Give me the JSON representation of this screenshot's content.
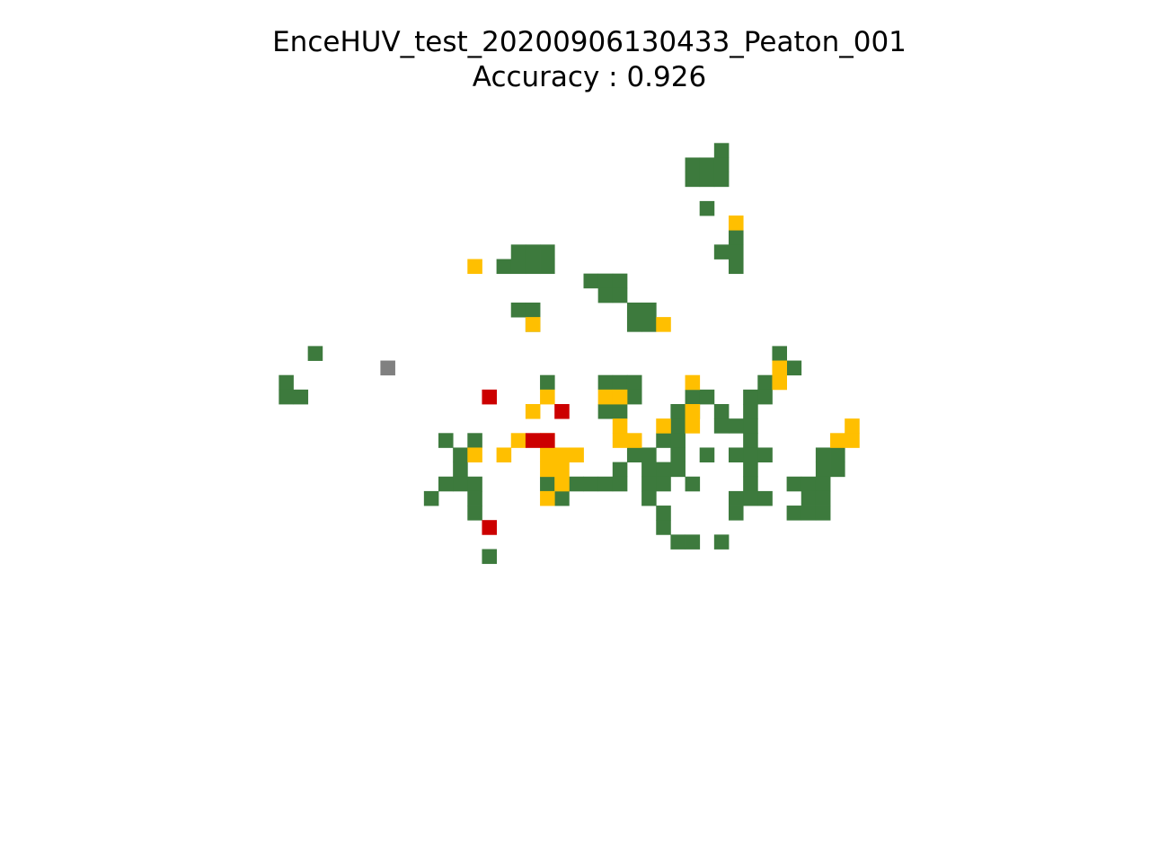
{
  "chart_data": {
    "type": "heatmap",
    "title": "EnceHUV_test_20200906130433_Peaton_001",
    "subtitle": "Accuracy : 0.926",
    "axes_visible": false,
    "grid": false,
    "legend": "none",
    "x_range": [
      0,
      50
    ],
    "y_range": [
      0,
      50
    ],
    "colors": {
      "green": "#3d7a3d",
      "yellow": "#ffbf00",
      "red": "#cc0000",
      "gray": "#808080"
    },
    "cells": {
      "green": [
        [
          39,
          2
        ],
        [
          37,
          3
        ],
        [
          38,
          3
        ],
        [
          39,
          3
        ],
        [
          37,
          4
        ],
        [
          38,
          4
        ],
        [
          39,
          4
        ],
        [
          38,
          6
        ],
        [
          40,
          8
        ],
        [
          39,
          9
        ],
        [
          40,
          9
        ],
        [
          40,
          10
        ],
        [
          25,
          9
        ],
        [
          26,
          9
        ],
        [
          27,
          9
        ],
        [
          24,
          10
        ],
        [
          25,
          10
        ],
        [
          26,
          10
        ],
        [
          27,
          10
        ],
        [
          30,
          11
        ],
        [
          31,
          11
        ],
        [
          32,
          11
        ],
        [
          31,
          12
        ],
        [
          32,
          12
        ],
        [
          33,
          13
        ],
        [
          34,
          13
        ],
        [
          25,
          13
        ],
        [
          26,
          13
        ],
        [
          26,
          14
        ],
        [
          33,
          14
        ],
        [
          34,
          14
        ],
        [
          11,
          16
        ],
        [
          43,
          16
        ],
        [
          44,
          17
        ],
        [
          9,
          18
        ],
        [
          9,
          19
        ],
        [
          10,
          19
        ],
        [
          27,
          18
        ],
        [
          31,
          18
        ],
        [
          32,
          18
        ],
        [
          33,
          18
        ],
        [
          33,
          19
        ],
        [
          42,
          18
        ],
        [
          41,
          19
        ],
        [
          42,
          19
        ],
        [
          37,
          19
        ],
        [
          38,
          19
        ],
        [
          31,
          20
        ],
        [
          32,
          20
        ],
        [
          36,
          20
        ],
        [
          37,
          20
        ],
        [
          39,
          20
        ],
        [
          41,
          20
        ],
        [
          36,
          21
        ],
        [
          39,
          21
        ],
        [
          40,
          21
        ],
        [
          41,
          21
        ],
        [
          20,
          22
        ],
        [
          22,
          22
        ],
        [
          35,
          22
        ],
        [
          36,
          22
        ],
        [
          41,
          22
        ],
        [
          21,
          23
        ],
        [
          33,
          23
        ],
        [
          34,
          23
        ],
        [
          36,
          23
        ],
        [
          38,
          23
        ],
        [
          40,
          23
        ],
        [
          41,
          23
        ],
        [
          42,
          23
        ],
        [
          46,
          23
        ],
        [
          47,
          23
        ],
        [
          21,
          24
        ],
        [
          32,
          24
        ],
        [
          34,
          24
        ],
        [
          35,
          24
        ],
        [
          36,
          24
        ],
        [
          41,
          24
        ],
        [
          46,
          24
        ],
        [
          47,
          24
        ],
        [
          20,
          25
        ],
        [
          21,
          25
        ],
        [
          22,
          25
        ],
        [
          27,
          25
        ],
        [
          29,
          25
        ],
        [
          30,
          25
        ],
        [
          31,
          25
        ],
        [
          32,
          25
        ],
        [
          34,
          25
        ],
        [
          35,
          25
        ],
        [
          37,
          25
        ],
        [
          41,
          25
        ],
        [
          44,
          25
        ],
        [
          45,
          25
        ],
        [
          46,
          25
        ],
        [
          19,
          26
        ],
        [
          22,
          26
        ],
        [
          28,
          26
        ],
        [
          34,
          26
        ],
        [
          40,
          26
        ],
        [
          41,
          26
        ],
        [
          42,
          26
        ],
        [
          45,
          26
        ],
        [
          46,
          26
        ],
        [
          22,
          27
        ],
        [
          35,
          27
        ],
        [
          40,
          27
        ],
        [
          44,
          27
        ],
        [
          45,
          27
        ],
        [
          46,
          27
        ],
        [
          35,
          28
        ],
        [
          36,
          29
        ],
        [
          37,
          29
        ],
        [
          39,
          29
        ],
        [
          23,
          30
        ]
      ],
      "yellow": [
        [
          40,
          7
        ],
        [
          22,
          10
        ],
        [
          26,
          14
        ],
        [
          35,
          14
        ],
        [
          43,
          17
        ],
        [
          43,
          18
        ],
        [
          37,
          18
        ],
        [
          27,
          19
        ],
        [
          31,
          19
        ],
        [
          32,
          19
        ],
        [
          26,
          20
        ],
        [
          37,
          20
        ],
        [
          32,
          21
        ],
        [
          35,
          21
        ],
        [
          37,
          21
        ],
        [
          48,
          21
        ],
        [
          25,
          22
        ],
        [
          27,
          22
        ],
        [
          32,
          22
        ],
        [
          33,
          22
        ],
        [
          47,
          22
        ],
        [
          48,
          22
        ],
        [
          22,
          23
        ],
        [
          24,
          23
        ],
        [
          27,
          23
        ],
        [
          28,
          23
        ],
        [
          29,
          23
        ],
        [
          27,
          24
        ],
        [
          28,
          24
        ],
        [
          28,
          25
        ],
        [
          27,
          26
        ]
      ],
      "red": [
        [
          23,
          19
        ],
        [
          28,
          20
        ],
        [
          26,
          22
        ],
        [
          27,
          22
        ],
        [
          23,
          28
        ]
      ],
      "gray": [
        [
          16,
          17
        ]
      ]
    }
  }
}
